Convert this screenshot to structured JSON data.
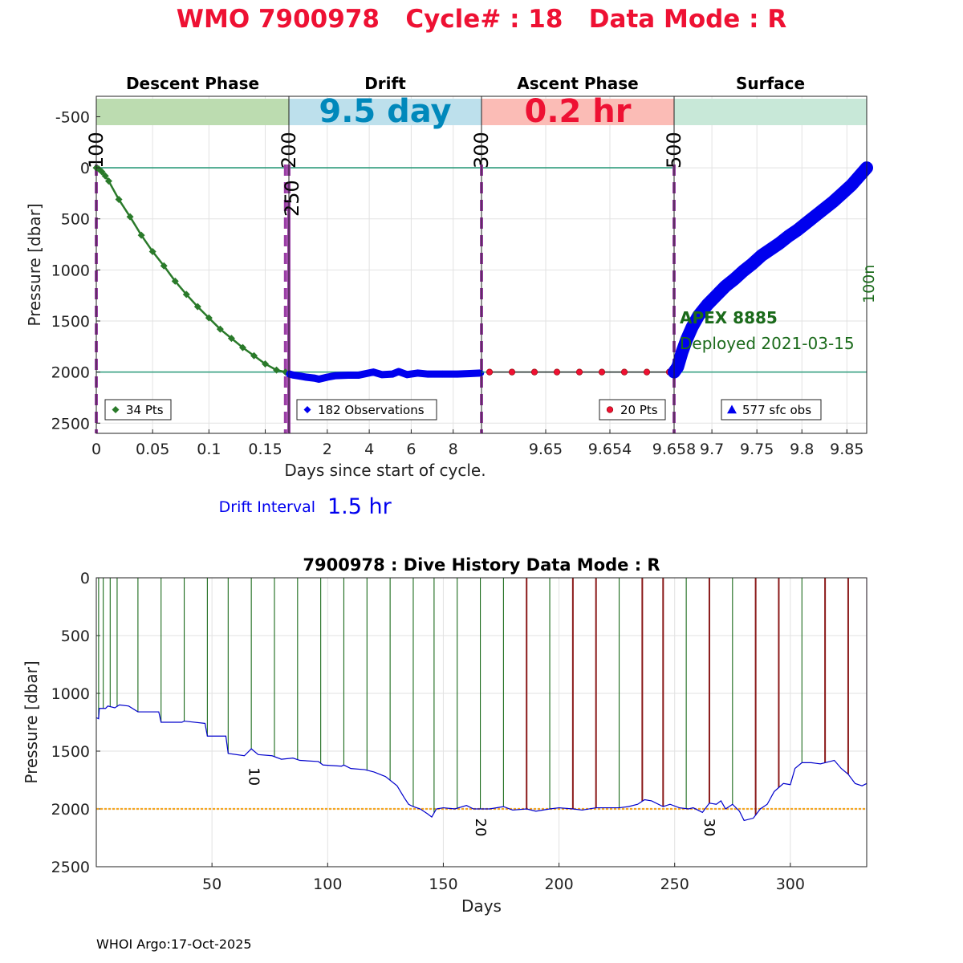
{
  "header": {
    "title": "WMO 7900978   Cycle# : 18   Data Mode : R",
    "title_color": "#ee1133"
  },
  "footer": {
    "credit": "WHOI Argo:17-Oct-2025"
  },
  "colors": {
    "descent": "#2a7a2a",
    "drift": "#0000ee",
    "ascent": "#ee1133",
    "surface": "#0000ee",
    "descent_band": "#bcdcb0",
    "drift_band": "#bde0ec",
    "ascent_band": "#fbbcb6",
    "surface_band": "#c8e8d8",
    "dashed_marker": "#9b3fa6",
    "reference_line": "#2a9a7a",
    "history_line": "#0000cc",
    "history_ref": "#f5a623",
    "cycle_green": "#1a6a1a",
    "cycle_brown": "#8b1a1a",
    "cycle_last": "#9b3fa6",
    "drift_time_color": "#0088bb",
    "float_info_color": "#1a6a1a"
  },
  "chart_data": [
    {
      "type": "line",
      "title": "",
      "xlabel": "Days since start of cycle.",
      "ylabel": "Pressure [dbar]",
      "ylim": [
        2600,
        -700
      ],
      "yticks": [
        -500,
        0,
        500,
        1000,
        1500,
        2000,
        2500
      ],
      "reference_lines": [
        0,
        2000
      ],
      "grid": true,
      "phases": [
        {
          "name": "Descent Phase",
          "band_text": "",
          "xlim": [
            0,
            0.171
          ],
          "xticks": [
            {
              "v": 0,
              "label": "0"
            },
            {
              "v": 0.05,
              "label": "0.05"
            },
            {
              "v": 0.1,
              "label": "0.1"
            },
            {
              "v": 0.15,
              "label": "0.15"
            }
          ],
          "legend": "34 Pts",
          "marker": "diamond",
          "markers": [
            {
              "at": 0,
              "label": "100",
              "label_offset": 0
            },
            {
              "at": 0.168,
              "label": "",
              "label_offset": 0
            }
          ],
          "points": [
            [
              0,
              0
            ],
            [
              0.002,
              10
            ],
            [
              0.005,
              40
            ],
            [
              0.008,
              80
            ],
            [
              0.011,
              130
            ],
            [
              0.02,
              310
            ],
            [
              0.03,
              480
            ],
            [
              0.04,
              660
            ],
            [
              0.05,
              820
            ],
            [
              0.06,
              960
            ],
            [
              0.07,
              1110
            ],
            [
              0.08,
              1240
            ],
            [
              0.09,
              1360
            ],
            [
              0.1,
              1470
            ],
            [
              0.11,
              1580
            ],
            [
              0.12,
              1670
            ],
            [
              0.13,
              1760
            ],
            [
              0.14,
              1840
            ],
            [
              0.15,
              1920
            ],
            [
              0.16,
              1980
            ],
            [
              0.168,
              2000
            ]
          ]
        },
        {
          "name": "Drift",
          "band_text": "9.5 day",
          "xlim": [
            0.171,
            9.35
          ],
          "xticks": [
            {
              "v": 2,
              "label": "2"
            },
            {
              "v": 4,
              "label": "4"
            },
            {
              "v": 6,
              "label": "6"
            },
            {
              "v": 8,
              "label": "8"
            }
          ],
          "legend": "182 Observations",
          "marker": "diamond",
          "markers": [
            {
              "at": 0.171,
              "label": "200",
              "label_offset": 0
            },
            {
              "at": 0.171,
              "label": "250",
              "label_offset": 1
            }
          ],
          "points": [
            [
              0.2,
              2020
            ],
            [
              0.4,
              2030
            ],
            [
              0.7,
              2040
            ],
            [
              1,
              2050
            ],
            [
              1.4,
              2060
            ],
            [
              1.6,
              2070
            ],
            [
              2,
              2050
            ],
            [
              2.4,
              2035
            ],
            [
              3,
              2030
            ],
            [
              3.5,
              2030
            ],
            [
              4.2,
              2000
            ],
            [
              4.6,
              2025
            ],
            [
              5.1,
              2020
            ],
            [
              5.4,
              1995
            ],
            [
              5.8,
              2025
            ],
            [
              6.3,
              2010
            ],
            [
              6.8,
              2020
            ],
            [
              7.5,
              2020
            ],
            [
              8.2,
              2020
            ],
            [
              8.8,
              2015
            ],
            [
              9.3,
              2010
            ]
          ]
        },
        {
          "name": "Ascent Phase",
          "band_text": "0.2 hr",
          "xlim": [
            9.646,
            9.658
          ],
          "xticks": [
            {
              "v": 9.65,
              "label": "9.65"
            },
            {
              "v": 9.654,
              "label": "9.654"
            },
            {
              "v": 9.658,
              "label": "9.658"
            }
          ],
          "legend": "20 Pts",
          "marker": "circle",
          "markers": [
            {
              "at": 9.646,
              "label": "300",
              "label_offset": 0
            },
            {
              "at": 9.658,
              "label": "500",
              "label_offset": 0
            }
          ],
          "points": [
            [
              9.6465,
              2000
            ],
            [
              9.6479,
              2000
            ],
            [
              9.6493,
              2000
            ],
            [
              9.6507,
              2000
            ],
            [
              9.6521,
              2000
            ],
            [
              9.6535,
              2000
            ],
            [
              9.6549,
              2000
            ],
            [
              9.6563,
              2000
            ],
            [
              9.6577,
              2000
            ]
          ]
        },
        {
          "name": "Surface",
          "band_text": "",
          "xlim": [
            9.658,
            9.872
          ],
          "xticks": [
            {
              "v": 9.7,
              "label": "9.7"
            },
            {
              "v": 9.75,
              "label": "9.75"
            },
            {
              "v": 9.8,
              "label": "9.8"
            },
            {
              "v": 9.85,
              "label": "9.85"
            }
          ],
          "legend": "577 sfc obs",
          "marker": "triangle",
          "markers": [],
          "points": [
            [
              9.658,
              2000
            ],
            [
              9.662,
              1950
            ],
            [
              9.667,
              1800
            ],
            [
              9.672,
              1680
            ],
            [
              9.678,
              1560
            ],
            [
              9.685,
              1450
            ],
            [
              9.695,
              1340
            ],
            [
              9.705,
              1250
            ],
            [
              9.715,
              1160
            ],
            [
              9.725,
              1090
            ],
            [
              9.735,
              1010
            ],
            [
              9.745,
              940
            ],
            [
              9.755,
              860
            ],
            [
              9.765,
              800
            ],
            [
              9.775,
              740
            ],
            [
              9.785,
              670
            ],
            [
              9.795,
              610
            ],
            [
              9.805,
              540
            ],
            [
              9.815,
              470
            ],
            [
              9.825,
              400
            ],
            [
              9.835,
              330
            ],
            [
              9.845,
              250
            ],
            [
              9.855,
              170
            ],
            [
              9.862,
              100
            ],
            [
              9.872,
              0
            ]
          ]
        }
      ],
      "drift_interval": {
        "label": "Drift Interval",
        "value": "1.5 hr"
      },
      "float_info": {
        "model": "APEX 8885",
        "deployed": "Deployed 2021-03-15"
      },
      "side_label": "100n"
    },
    {
      "type": "line",
      "title": "7900978 : Dive History      Data Mode : R",
      "xlabel": "Days",
      "ylabel": "Pressure [dbar]",
      "xlim": [
        0,
        333
      ],
      "ylim": [
        2500,
        0
      ],
      "xticks": [
        50,
        100,
        150,
        200,
        250,
        300
      ],
      "yticks": [
        0,
        500,
        1000,
        1500,
        2000,
        2500
      ],
      "reference_line": 2000,
      "grid": true,
      "cycle_labels": [
        {
          "day": 66,
          "pressure": 1640,
          "label": "10"
        },
        {
          "day": 164,
          "pressure": 2080,
          "label": "20"
        },
        {
          "day": 263,
          "pressure": 2080,
          "label": "30"
        }
      ],
      "cycles": [
        {
          "day": 1,
          "status": "green"
        },
        {
          "day": 3,
          "status": "green"
        },
        {
          "day": 6,
          "status": "green"
        },
        {
          "day": 9,
          "status": "green"
        },
        {
          "day": 18,
          "status": "green"
        },
        {
          "day": 28,
          "status": "green"
        },
        {
          "day": 38,
          "status": "green"
        },
        {
          "day": 48,
          "status": "green"
        },
        {
          "day": 57,
          "status": "green"
        },
        {
          "day": 67,
          "status": "green"
        },
        {
          "day": 77,
          "status": "green"
        },
        {
          "day": 87,
          "status": "green"
        },
        {
          "day": 97,
          "status": "green"
        },
        {
          "day": 107,
          "status": "green"
        },
        {
          "day": 117,
          "status": "green"
        },
        {
          "day": 127,
          "status": "green"
        },
        {
          "day": 137,
          "status": "green"
        },
        {
          "day": 146,
          "status": "green"
        },
        {
          "day": 156,
          "status": "green"
        },
        {
          "day": 166,
          "status": "green"
        },
        {
          "day": 176,
          "status": "green"
        },
        {
          "day": 186,
          "status": "brown"
        },
        {
          "day": 196,
          "status": "green"
        },
        {
          "day": 206,
          "status": "brown"
        },
        {
          "day": 216,
          "status": "brown"
        },
        {
          "day": 226,
          "status": "green"
        },
        {
          "day": 236,
          "status": "brown"
        },
        {
          "day": 245,
          "status": "brown"
        },
        {
          "day": 255,
          "status": "green"
        },
        {
          "day": 265,
          "status": "brown"
        },
        {
          "day": 275,
          "status": "green"
        },
        {
          "day": 285,
          "status": "brown"
        },
        {
          "day": 295,
          "status": "brown"
        },
        {
          "day": 305,
          "status": "green"
        },
        {
          "day": 315,
          "status": "brown"
        },
        {
          "day": 325,
          "status": "brown"
        },
        {
          "day": 333,
          "status": "last"
        }
      ],
      "history_trace": [
        [
          0,
          1210
        ],
        [
          1,
          1220
        ],
        [
          1.3,
          1130
        ],
        [
          4,
          1130
        ],
        [
          5,
          1110
        ],
        [
          8,
          1125
        ],
        [
          10,
          1100
        ],
        [
          14,
          1110
        ],
        [
          18,
          1160
        ],
        [
          27,
          1160
        ],
        [
          28,
          1250
        ],
        [
          37,
          1250
        ],
        [
          38,
          1240
        ],
        [
          47,
          1260
        ],
        [
          48,
          1370
        ],
        [
          56,
          1370
        ],
        [
          57,
          1520
        ],
        [
          64,
          1540
        ],
        [
          67,
          1480
        ],
        [
          70,
          1530
        ],
        [
          76,
          1540
        ],
        [
          80,
          1570
        ],
        [
          85,
          1560
        ],
        [
          88,
          1580
        ],
        [
          96,
          1590
        ],
        [
          98,
          1620
        ],
        [
          106,
          1630
        ],
        [
          107,
          1620
        ],
        [
          110,
          1650
        ],
        [
          116,
          1660
        ],
        [
          120,
          1680
        ],
        [
          125,
          1720
        ],
        [
          130,
          1800
        ],
        [
          133,
          1900
        ],
        [
          135,
          1960
        ],
        [
          137,
          1980
        ],
        [
          140,
          2000
        ],
        [
          143,
          2040
        ],
        [
          145,
          2070
        ],
        [
          147,
          2000
        ],
        [
          150,
          1990
        ],
        [
          155,
          2000
        ],
        [
          160,
          1970
        ],
        [
          163,
          2000
        ],
        [
          170,
          2000
        ],
        [
          176,
          1980
        ],
        [
          180,
          2010
        ],
        [
          186,
          2000
        ],
        [
          190,
          2020
        ],
        [
          196,
          2000
        ],
        [
          200,
          1990
        ],
        [
          206,
          2000
        ],
        [
          210,
          2010
        ],
        [
          216,
          1990
        ],
        [
          222,
          1990
        ],
        [
          226,
          1990
        ],
        [
          230,
          1980
        ],
        [
          234,
          1960
        ],
        [
          237,
          1920
        ],
        [
          240,
          1930
        ],
        [
          245,
          1980
        ],
        [
          248,
          1960
        ],
        [
          252,
          1990
        ],
        [
          256,
          2000
        ],
        [
          258,
          1990
        ],
        [
          262,
          2030
        ],
        [
          265,
          1950
        ],
        [
          268,
          1960
        ],
        [
          270,
          1930
        ],
        [
          272,
          2000
        ],
        [
          275,
          1960
        ],
        [
          278,
          2020
        ],
        [
          280,
          2100
        ],
        [
          284,
          2080
        ],
        [
          287,
          2000
        ],
        [
          290,
          1960
        ],
        [
          293,
          1850
        ],
        [
          297,
          1780
        ],
        [
          300,
          1790
        ],
        [
          302,
          1650
        ],
        [
          305,
          1600
        ],
        [
          309,
          1600
        ],
        [
          313,
          1610
        ],
        [
          317,
          1590
        ],
        [
          319,
          1580
        ],
        [
          322,
          1650
        ],
        [
          325,
          1700
        ],
        [
          328,
          1780
        ],
        [
          331,
          1800
        ],
        [
          333,
          1780
        ]
      ]
    }
  ]
}
